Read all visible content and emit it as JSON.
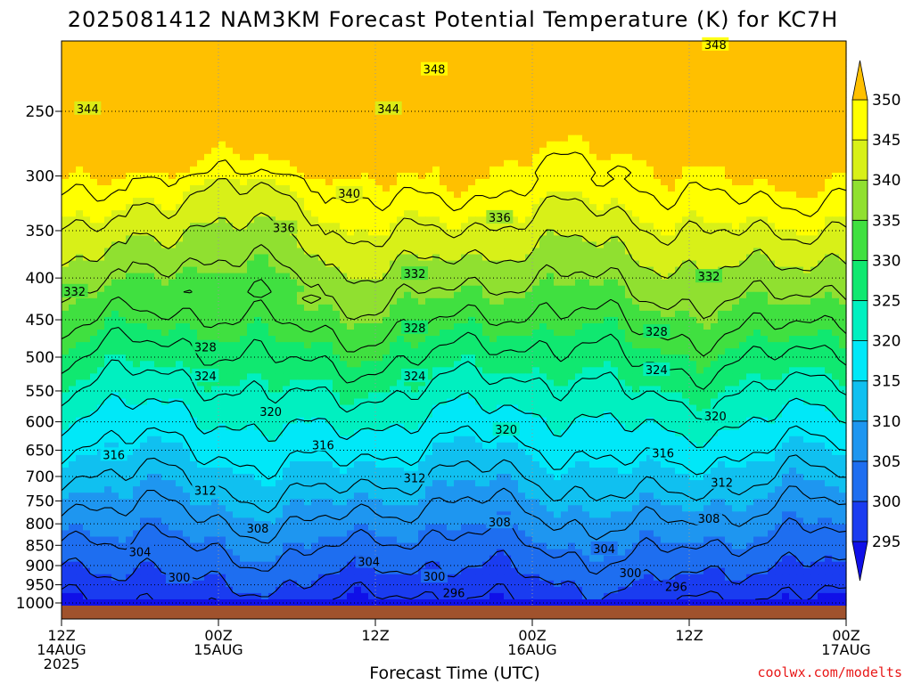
{
  "chart_data": {
    "type": "heatmap",
    "title": "2025081412 NAM3KM Forecast Potential Temperature (K) for KC7H",
    "xlabel": "Forecast Time (UTC)",
    "credit": "coolwx.com/modelts",
    "x_ticks": [
      {
        "hours": 0,
        "l1": "12Z",
        "l2": "14AUG",
        "l3": "2025"
      },
      {
        "hours": 12,
        "l1": "00Z",
        "l2": "15AUG",
        "l3": ""
      },
      {
        "hours": 24,
        "l1": "12Z",
        "l2": "",
        "l3": ""
      },
      {
        "hours": 36,
        "l1": "00Z",
        "l2": "16AUG",
        "l3": ""
      },
      {
        "hours": 48,
        "l1": "12Z",
        "l2": "",
        "l3": ""
      },
      {
        "hours": 60,
        "l1": "00Z",
        "l2": "17AUG",
        "l3": ""
      }
    ],
    "x_range_hours": [
      0,
      60
    ],
    "y_axis": "pressure (hPa), log scale, inverted",
    "y_ticks": [
      250,
      300,
      350,
      400,
      450,
      500,
      550,
      600,
      650,
      700,
      750,
      800,
      850,
      900,
      950,
      1000
    ],
    "y_range": [
      200,
      1025
    ],
    "colorbar": {
      "levels": [
        295,
        300,
        305,
        310,
        315,
        320,
        325,
        330,
        335,
        340,
        345,
        350
      ],
      "colors": [
        "#1010e8",
        "#1a3cf0",
        "#1e6ef0",
        "#1e96f0",
        "#10c0f0",
        "#00e8f8",
        "#00f0c0",
        "#10e870",
        "#40e040",
        "#90e030",
        "#d8f018",
        "#ffff00",
        "#ffc000"
      ],
      "extend": "both"
    },
    "contour_levels": [
      296,
      300,
      304,
      308,
      312,
      316,
      320,
      324,
      328,
      332,
      336,
      340,
      344,
      348
    ],
    "contour_labels": [
      {
        "v": 348,
        "h": 28.5,
        "p": 222
      },
      {
        "v": 348,
        "h": 50.0,
        "p": 207
      },
      {
        "v": 344,
        "h": 2.0,
        "p": 248
      },
      {
        "v": 344,
        "h": 25.0,
        "p": 248
      },
      {
        "v": 340,
        "h": 22.0,
        "p": 315
      },
      {
        "v": 336,
        "h": 17.0,
        "p": 347
      },
      {
        "v": 336,
        "h": 33.5,
        "p": 337
      },
      {
        "v": 332,
        "h": 1.0,
        "p": 415
      },
      {
        "v": 332,
        "h": 27.0,
        "p": 395
      },
      {
        "v": 332,
        "h": 49.5,
        "p": 398
      },
      {
        "v": 328,
        "h": 11.0,
        "p": 486
      },
      {
        "v": 328,
        "h": 27.0,
        "p": 460
      },
      {
        "v": 328,
        "h": 45.5,
        "p": 465
      },
      {
        "v": 324,
        "h": 11.0,
        "p": 527
      },
      {
        "v": 324,
        "h": 27.0,
        "p": 527
      },
      {
        "v": 324,
        "h": 45.5,
        "p": 518
      },
      {
        "v": 320,
        "h": 16.0,
        "p": 583
      },
      {
        "v": 320,
        "h": 34.0,
        "p": 613
      },
      {
        "v": 320,
        "h": 50.0,
        "p": 590
      },
      {
        "v": 316,
        "h": 4.0,
        "p": 658
      },
      {
        "v": 316,
        "h": 20.0,
        "p": 640
      },
      {
        "v": 316,
        "h": 46.0,
        "p": 655
      },
      {
        "v": 312,
        "h": 11.0,
        "p": 728
      },
      {
        "v": 312,
        "h": 27.0,
        "p": 703
      },
      {
        "v": 312,
        "h": 50.5,
        "p": 712
      },
      {
        "v": 308,
        "h": 15.0,
        "p": 810
      },
      {
        "v": 308,
        "h": 33.5,
        "p": 796
      },
      {
        "v": 308,
        "h": 49.5,
        "p": 788
      },
      {
        "v": 304,
        "h": 6.0,
        "p": 865
      },
      {
        "v": 304,
        "h": 23.5,
        "p": 890
      },
      {
        "v": 304,
        "h": 41.5,
        "p": 858
      },
      {
        "v": 300,
        "h": 9.0,
        "p": 930
      },
      {
        "v": 300,
        "h": 28.5,
        "p": 928
      },
      {
        "v": 300,
        "h": 43.5,
        "p": 918
      },
      {
        "v": 296,
        "h": 30.0,
        "p": 972
      },
      {
        "v": 296,
        "h": 47.0,
        "p": 955
      }
    ]
  }
}
